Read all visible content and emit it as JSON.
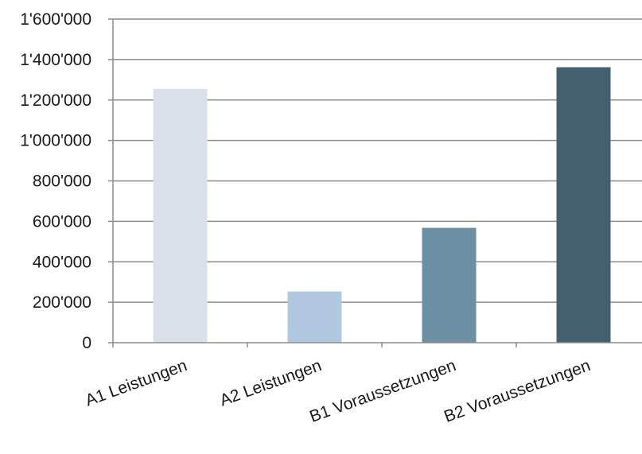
{
  "chart_data": {
    "type": "bar",
    "categories": [
      "A1 Leistungen",
      "A2 Leistungen",
      "B1 Voraussetzungen",
      "B2 Voraussetzungen"
    ],
    "values": [
      1255000,
      253000,
      568000,
      1362000
    ],
    "colors": [
      "#dbe1e8",
      "#b0c9e0",
      "#6c8fa3",
      "#445f6e"
    ],
    "ylim": [
      0,
      1600000
    ],
    "yticks": [
      0,
      200000,
      400000,
      600000,
      800000,
      1000000,
      1200000,
      1400000,
      1600000
    ],
    "ytick_labels": [
      "0",
      "200'000",
      "400'000",
      "600'000",
      "800'000",
      "1'000'000",
      "1'200'000",
      "1'400'000",
      "1'600'000"
    ],
    "grid": true,
    "legend": "none"
  }
}
